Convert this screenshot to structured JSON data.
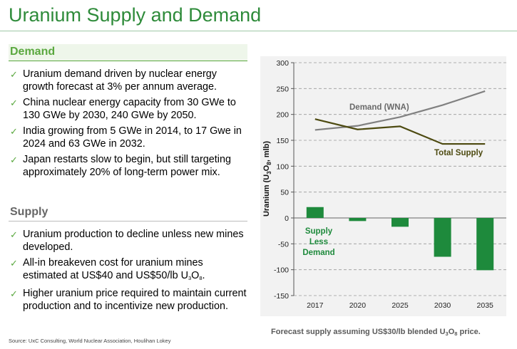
{
  "page": {
    "title": "Uranium Supply and Demand",
    "source": "Source: UxC Consulting, World Nuclear Association, Houlihan Lokey",
    "caption_parts": [
      "Forecast supply assuming US$30/lb blended U",
      "3",
      "O",
      "8",
      " price."
    ]
  },
  "demand": {
    "heading": "Demand",
    "bullets": [
      "Uranium demand driven by nuclear energy growth forecast at 3% per annum average.",
      "China nuclear energy capacity from 30 GWe to 130 GWe by 2030, 240 GWe by 2050.",
      "India growing from 5 GWe in 2014, to 17 Gwe in 2024 and 63 GWe in 2032.",
      "Japan restarts slow to begin, but still targeting approximately 20% of long-term power mix."
    ]
  },
  "supply": {
    "heading": "Supply",
    "bullets": [
      "Uranium production to decline unless new mines developed.",
      "Higher uranium price required to maintain current production and to incentivize new production."
    ],
    "breakeven_parts": [
      "All-in breakeven cost for uranium mines estimated at US$40 and US$50/lb U",
      "3",
      "O",
      "8",
      "."
    ]
  },
  "icons": {
    "bullet": "check-icon",
    "check_glyph": "✓"
  },
  "chart_data": {
    "type": "bar",
    "categories": [
      "2017",
      "2020",
      "2025",
      "2030",
      "2035"
    ],
    "ylim": [
      -150,
      300
    ],
    "yticks": [
      -150,
      -100,
      -50,
      0,
      50,
      100,
      150,
      200,
      250,
      300
    ],
    "ylabel_parts": [
      "Uranium (U",
      "3",
      "O",
      "8",
      ", mlb)"
    ],
    "grid": true,
    "series": [
      {
        "name": "Supply Less Demand",
        "kind": "bar",
        "values": [
          21,
          -6,
          -17,
          -75,
          -101
        ],
        "color": "#1e8a3c"
      },
      {
        "name": "Demand (WNA)",
        "kind": "line",
        "values": [
          170,
          178,
          195,
          218,
          245
        ],
        "color": "#808080"
      },
      {
        "name": "Total Supply",
        "kind": "line",
        "values": [
          191,
          171,
          177,
          143,
          143
        ],
        "color": "#4d4a10"
      }
    ],
    "annotations": {
      "demand_label": "Demand (WNA)",
      "supply_label": "Total Supply",
      "gap_label_lines": [
        "Supply",
        "Less",
        "Demand"
      ]
    }
  },
  "colors": {
    "title": "#2e8b3a",
    "accent": "#5aa83f",
    "bar": "#1e8a3c",
    "supply_line": "#4d4a10",
    "demand_line": "#808080",
    "panel": "#f2f2f2"
  }
}
